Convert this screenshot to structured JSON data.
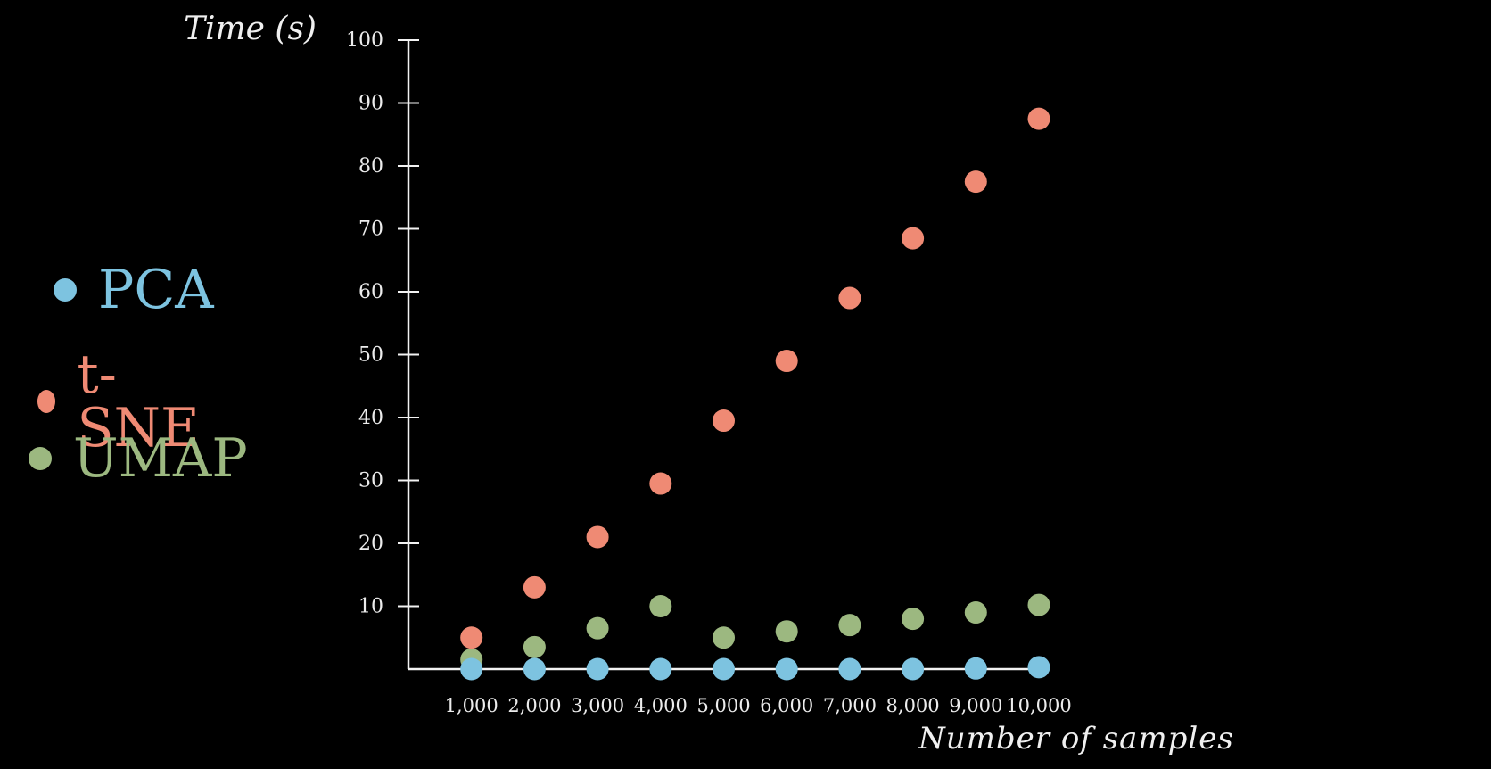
{
  "chart_data": {
    "type": "scatter",
    "title": "",
    "xlabel": "Number of samples",
    "ylabel": "Time (s)",
    "x": [
      1000,
      2000,
      3000,
      4000,
      5000,
      6000,
      7000,
      8000,
      9000,
      10000
    ],
    "x_tick_labels": [
      "1,000",
      "2,000",
      "3,000",
      "4,000",
      "5,000",
      "6,000",
      "7,000",
      "8,000",
      "9,000",
      "10,000"
    ],
    "y_ticks": [
      10,
      20,
      30,
      40,
      50,
      60,
      70,
      80,
      90,
      100
    ],
    "ylim": [
      0,
      100
    ],
    "xlim": [
      0,
      10000
    ],
    "legend_position": "left",
    "grid": false,
    "series": [
      {
        "name": "PCA",
        "color": "#7dc3e0",
        "values": [
          0,
          0,
          0,
          0,
          0,
          0,
          0,
          0,
          0.1,
          0.3
        ]
      },
      {
        "name": "t-SNE",
        "color": "#ef8a74",
        "values": [
          5,
          13,
          21,
          29.5,
          39.5,
          49,
          59,
          68.5,
          77.5,
          87.5
        ]
      },
      {
        "name": "UMAP",
        "color": "#9cb880",
        "values": [
          1.5,
          3.5,
          6.5,
          10,
          5,
          6,
          7,
          8,
          9,
          10.2
        ]
      }
    ]
  }
}
